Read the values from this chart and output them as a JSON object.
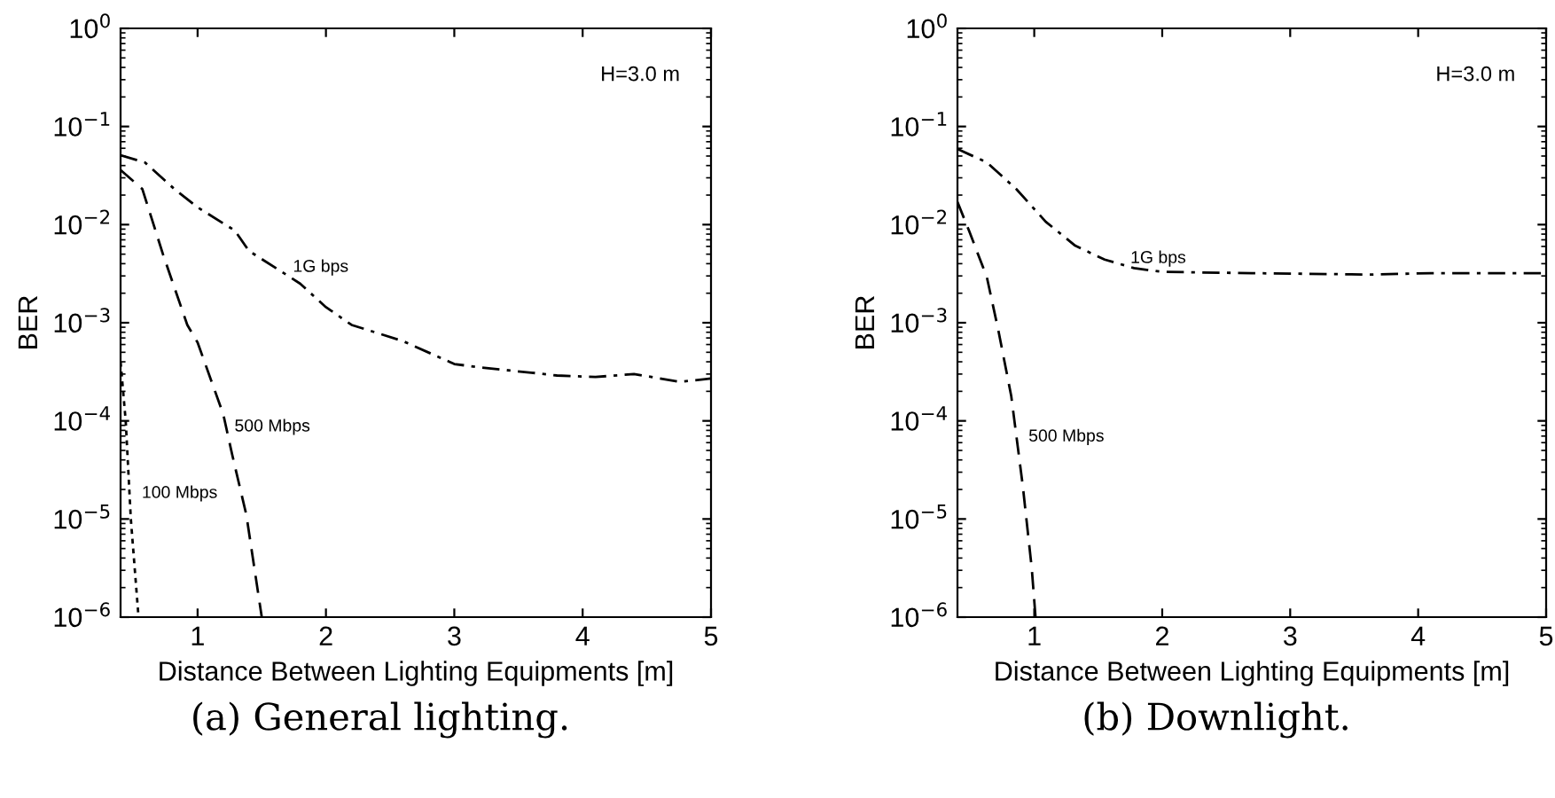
{
  "chart_data": [
    {
      "type": "line",
      "title": "(a) General lighting.",
      "xlabel": "Distance Between Lighting Equipments [m]",
      "ylabel": "BER",
      "log": "y",
      "xlim": [
        0.4,
        5
      ],
      "xticks": [
        1,
        2,
        3,
        4,
        5
      ],
      "ylim": [
        1e-06,
        1
      ],
      "yticks": [
        {
          "value": 1e-06,
          "label": "10$^{−6}$"
        },
        {
          "value": 1e-05,
          "label": "10$^{−5}$"
        },
        {
          "value": 0.0001,
          "label": "10$^{−4}$"
        },
        {
          "value": 0.001,
          "label": "10$^{−3}$"
        },
        {
          "value": 0.01,
          "label": "10$^{−2}$"
        },
        {
          "value": 0.1,
          "label": "10$^{−1}$"
        },
        {
          "value": 1,
          "label": "10$^{0}$"
        }
      ],
      "series": [
        {
          "color": "#000000",
          "line_style": "dashdot",
          "x": [
            0.4,
            0.59,
            0.82,
            1.0,
            1.29,
            1.4,
            1.8,
            2.0,
            2.2,
            2.6,
            3.0,
            3.2,
            3.6,
            3.8,
            4.1,
            4.4,
            4.76,
            5.0
          ],
          "values": [
            0.051,
            0.043,
            0.023,
            0.015,
            0.0087,
            0.0054,
            0.0025,
            0.00144,
            0.00095,
            0.00065,
            0.00038,
            0.00035,
            0.00031,
            0.00029,
            0.00028,
            0.0003,
            0.00025,
            0.00027
          ]
        },
        {
          "color": "#000000",
          "line_style": "dashed",
          "x": [
            0.4,
            0.57,
            0.73,
            0.92,
            1.0,
            1.2,
            1.27,
            1.38,
            1.5
          ],
          "values": [
            0.036,
            0.023,
            0.005,
            0.00095,
            0.00063,
            0.000117,
            4.5e-05,
            1.1e-05,
            1e-06
          ]
        },
        {
          "color": "#000000",
          "line_style": "dotted",
          "x": [
            0.4,
            0.44,
            0.48,
            0.54
          ],
          "values": [
            0.0004,
            0.0001,
            1e-05,
            1e-06
          ]
        }
      ],
      "annotations": [
        "H=3.0 m",
        "1G bps",
        "500 Mbps",
        "100 Mbps"
      ],
      "grid": false
    },
    {
      "type": "line",
      "title": "(b) Downlight.",
      "xlabel": "Distance Between Lighting Equipments [m]",
      "ylabel": "BER",
      "log": "y",
      "xlim": [
        0.4,
        5
      ],
      "xticks": [
        1,
        2,
        3,
        4,
        5
      ],
      "ylim": [
        1e-06,
        1
      ],
      "yticks": [
        {
          "value": 1e-06,
          "label": "10$^{−6}$"
        },
        {
          "value": 1e-05,
          "label": "10$^{−5}$"
        },
        {
          "value": 0.0001,
          "label": "10$^{−4}$"
        },
        {
          "value": 0.001,
          "label": "10$^{−3}$"
        },
        {
          "value": 0.01,
          "label": "10$^{−2}$"
        },
        {
          "value": 0.1,
          "label": "10$^{−1}$"
        },
        {
          "value": 1,
          "label": "10$^{0}$"
        }
      ],
      "series": [
        {
          "color": "#000000",
          "line_style": "dashdot",
          "x": [
            0.4,
            0.63,
            0.86,
            1.09,
            1.32,
            1.55,
            1.78,
            2.0,
            2.7,
            3.63,
            4.1,
            5.0
          ],
          "values": [
            0.059,
            0.043,
            0.023,
            0.0107,
            0.0061,
            0.0044,
            0.0036,
            0.0033,
            0.0032,
            0.0031,
            0.0032,
            0.0032
          ]
        },
        {
          "color": "#000000",
          "line_style": "dashed",
          "x": [
            0.4,
            0.49,
            0.63,
            0.72,
            0.82,
            0.91,
            0.98,
            1.01
          ],
          "values": [
            0.017,
            0.0087,
            0.0029,
            0.00083,
            0.00018,
            2.2e-05,
            3.2e-06,
            1e-06
          ]
        }
      ],
      "annotations": [
        "H=3.0 m",
        "1G bps",
        "500 Mbps"
      ],
      "grid": false
    }
  ]
}
